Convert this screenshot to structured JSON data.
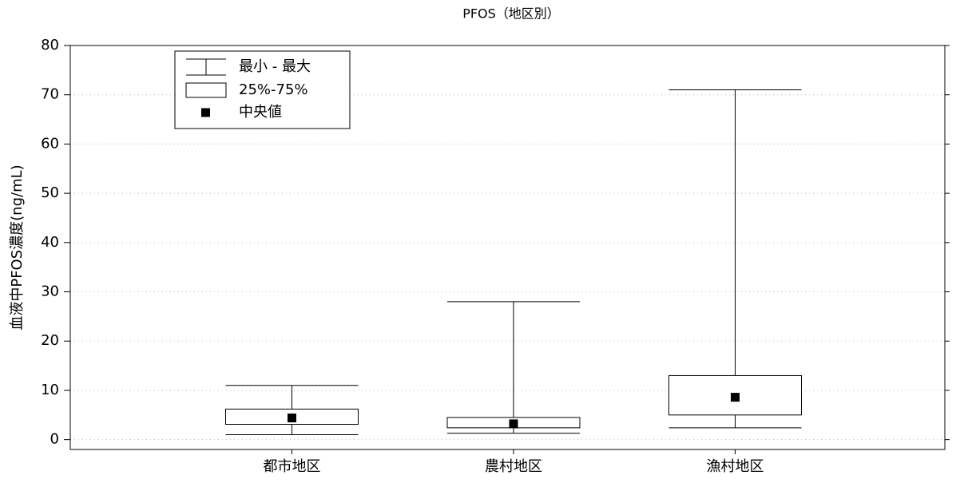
{
  "chart_data": {
    "type": "box",
    "title": "PFOS（地区別）",
    "y_label": "血液中PFOS濃度(ng/mL)",
    "categories": [
      "都市地区",
      "農村地区",
      "漁村地区"
    ],
    "min": [
      1,
      1.3,
      2.4
    ],
    "q1": [
      3.1,
      2.4,
      5
    ],
    "median": [
      4.4,
      3.2,
      8.6
    ],
    "q3": [
      6.2,
      4.5,
      13
    ],
    "max": [
      11,
      28,
      71
    ],
    "legend": [
      "最小 - 最大",
      "25%-75%",
      "中央値"
    ],
    "legend_position": "upper left",
    "ylim": [
      -2,
      80
    ],
    "yticks": [
      0,
      10,
      20,
      30,
      40,
      50,
      60,
      70,
      80
    ],
    "grid": true,
    "color": "#000000"
  }
}
